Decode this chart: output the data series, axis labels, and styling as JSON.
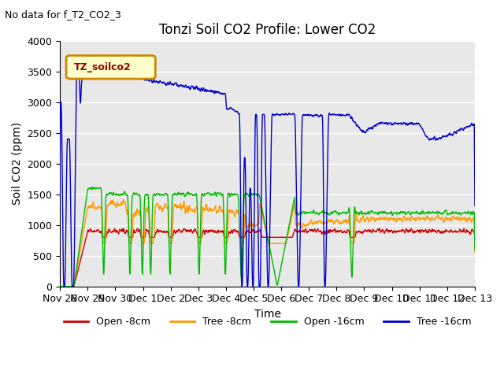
{
  "title": "Tonzi Soil CO2 Profile: Lower CO2",
  "subtitle": "No data for f_T2_CO2_3",
  "ylabel": "Soil CO2 (ppm)",
  "xlabel": "Time",
  "ylim": [
    0,
    4000
  ],
  "yticks": [
    0,
    500,
    1000,
    1500,
    2000,
    2500,
    3000,
    3500,
    4000
  ],
  "legend_labels": [
    "Open -8cm",
    "Tree -8cm",
    "Open -16cm",
    "Tree -16cm"
  ],
  "legend_colors": [
    "#cc0000",
    "#ff9900",
    "#00bb00",
    "#0000cc"
  ],
  "bg_color": "#e8e8e8",
  "xtick_labels": [
    "Nov 28",
    "Nov 29",
    "Nov 30",
    "Dec 1",
    "Dec 2",
    "Dec 3",
    "Dec 4",
    "Dec 5",
    "Dec 6",
    "Dec 7",
    "Dec 8",
    "Dec 9",
    "Dec 10",
    "Dec 11",
    "Dec 12",
    "Dec 13"
  ],
  "title_fontsize": 12,
  "axis_fontsize": 10,
  "tick_fontsize": 9
}
